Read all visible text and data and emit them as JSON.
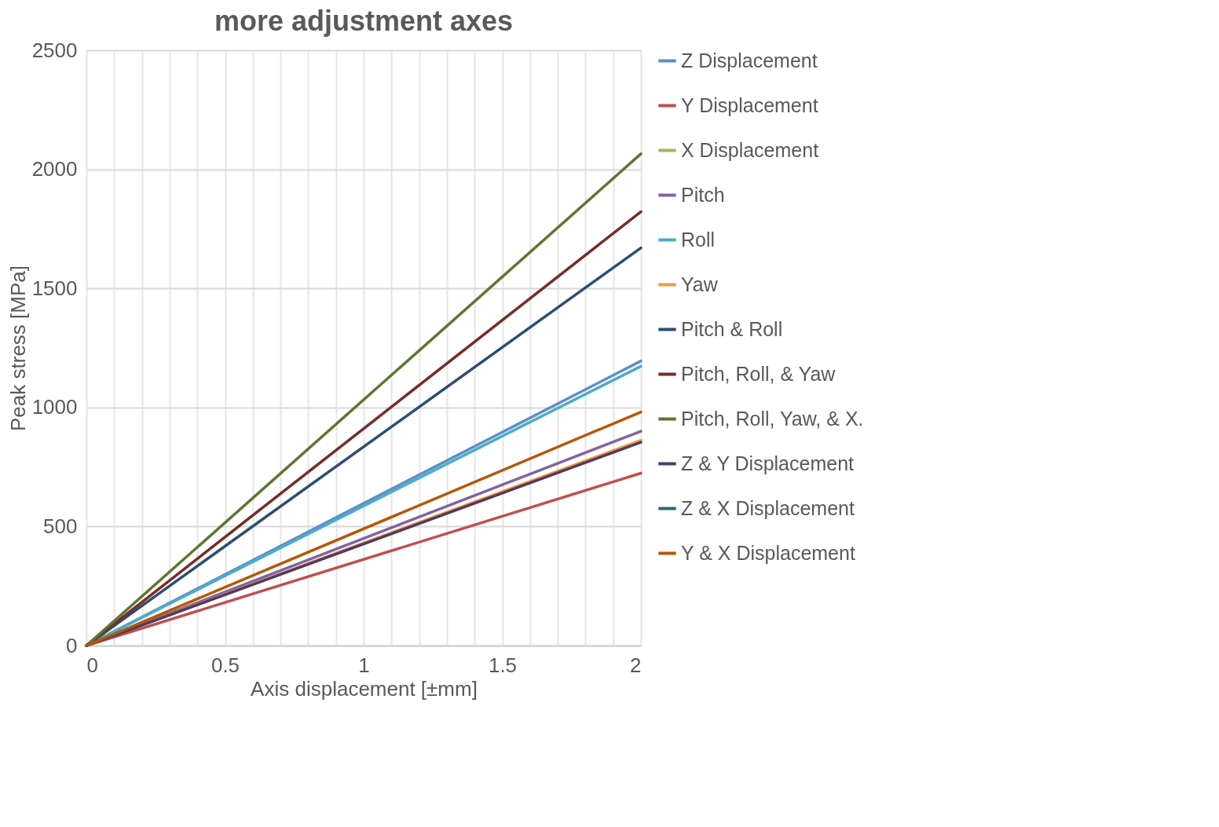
{
  "chart_data": {
    "type": "line",
    "title": "more adjustment axes",
    "xlabel": "Axis displacement [±mm]",
    "ylabel": "Peak stress [MPa]",
    "x": [
      0,
      2
    ],
    "series": [
      {
        "name": "Z Displacement",
        "color": "#5b8fc9",
        "values": [
          0,
          1195
        ]
      },
      {
        "name": "Y Displacement",
        "color": "#c0504d",
        "values": [
          0,
          724
        ]
      },
      {
        "name": "X Displacement",
        "color": "#9bbb59",
        "values": [
          null,
          null
        ]
      },
      {
        "name": "Pitch",
        "color": "#8064a2",
        "values": [
          0,
          900
        ]
      },
      {
        "name": "Roll",
        "color": "#4bacc6",
        "values": [
          0,
          1173
        ]
      },
      {
        "name": "Yaw",
        "color": "#f79646",
        "values": [
          0,
          862
        ]
      },
      {
        "name": "Pitch & Roll",
        "color": "#2c4d75",
        "values": [
          0,
          1670
        ]
      },
      {
        "name": "Pitch, Roll, & Yaw",
        "color": "#772c2a",
        "values": [
          0,
          1822
        ]
      },
      {
        "name": "Pitch, Roll, Yaw, & X.",
        "color": "#5f7530",
        "values": [
          0,
          2065
        ]
      },
      {
        "name": "Z & Y Displacement",
        "color": "#4d3b62",
        "values": [
          0,
          854
        ]
      },
      {
        "name": "Z & X Displacement",
        "color": "#276a7c",
        "values": [
          null,
          null
        ]
      },
      {
        "name": "Y & X Displacement",
        "color": "#b65708",
        "values": [
          0,
          981
        ]
      }
    ],
    "xlim": [
      0,
      2
    ],
    "xticks": [
      0,
      {
        "value": 0.1,
        "label": null
      },
      {
        "value": 0.2,
        "label": null
      },
      {
        "value": 0.3,
        "label": null
      },
      {
        "value": 0.4,
        "label": null
      },
      0.5,
      {
        "value": 0.6,
        "label": null
      },
      {
        "value": 0.7,
        "label": null
      },
      {
        "value": 0.8,
        "label": null
      },
      {
        "value": 0.9,
        "label": null
      },
      1,
      {
        "value": 1.1,
        "label": null
      },
      {
        "value": 1.2,
        "label": null
      },
      {
        "value": 1.3,
        "label": null
      },
      {
        "value": 1.4,
        "label": null
      },
      1.5,
      {
        "value": 1.6,
        "label": null
      },
      {
        "value": 1.7,
        "label": null
      },
      {
        "value": 1.8,
        "label": null
      },
      {
        "value": 1.9,
        "label": null
      },
      2
    ],
    "ylim": [
      0,
      2500
    ],
    "yticks": [
      0,
      500,
      1000,
      1500,
      2000,
      2500
    ],
    "grid": true,
    "legend": "right",
    "marker": "none",
    "line_style": "solid"
  }
}
